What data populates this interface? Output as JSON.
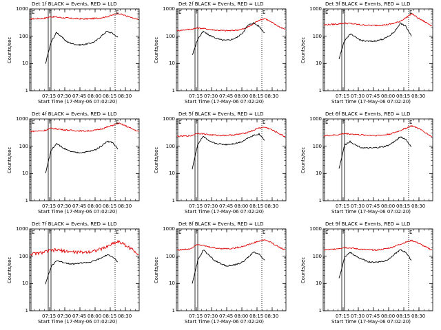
{
  "figure": {
    "x_tick_labels": [
      "07:15",
      "07:30",
      "07:45",
      "08:00",
      "08:15",
      "08:30"
    ],
    "y_tick_labels": [
      "1",
      "10",
      "100",
      "1000"
    ],
    "ylabel": "Counts/sec",
    "xlabel": "Start Time (17-May-06 07:02:20)",
    "marker_labels": [
      "E",
      "F",
      "E"
    ]
  },
  "chart_data": [
    {
      "type": "line",
      "title": "Det 1f BLACK = Events, RED = LLD",
      "ylim": [
        1,
        1000
      ],
      "yscale": "log",
      "series": [
        {
          "name": "RED",
          "color": "#e00000",
          "values": [
            430,
            440,
            450,
            520,
            500,
            470,
            450,
            440,
            430,
            440,
            460,
            500,
            580,
            690,
            580,
            470,
            400
          ]
        },
        {
          "name": "BLACK",
          "color": "#000000",
          "values": [
            10,
            60,
            140,
            90,
            60,
            52,
            48,
            50,
            55,
            65,
            100,
            150,
            130,
            90
          ]
        }
      ]
    },
    {
      "type": "line",
      "title": "Det 2f BLACK = Events, RED = LLD",
      "ylim": [
        1,
        1000
      ],
      "yscale": "log",
      "series": [
        {
          "name": "RED",
          "color": "#e00000",
          "values": [
            160,
            170,
            180,
            200,
            190,
            175,
            165,
            160,
            160,
            170,
            190,
            250,
            380,
            450,
            320,
            230,
            180
          ]
        },
        {
          "name": "BLACK",
          "color": "#000000",
          "values": [
            20,
            80,
            150,
            110,
            90,
            75,
            70,
            75,
            90,
            130,
            250,
            310,
            230,
            130
          ]
        }
      ]
    },
    {
      "type": "line",
      "title": "Det 3f BLACK = Events, RED = LLD",
      "ylim": [
        1,
        1000
      ],
      "yscale": "log",
      "series": [
        {
          "name": "RED",
          "color": "#e00000",
          "values": [
            260,
            270,
            280,
            300,
            290,
            270,
            255,
            250,
            250,
            260,
            280,
            330,
            450,
            680,
            450,
            330,
            240
          ]
        },
        {
          "name": "BLACK",
          "color": "#000000",
          "values": [
            15,
            70,
            120,
            90,
            70,
            65,
            65,
            70,
            80,
            100,
            150,
            300,
            230,
            100
          ]
        }
      ]
    },
    {
      "type": "line",
      "title": "Det 4f BLACK = Events, RED = LLD",
      "ylim": [
        1,
        1000
      ],
      "yscale": "log",
      "series": [
        {
          "name": "RED",
          "color": "#e00000",
          "values": [
            350,
            360,
            370,
            450,
            430,
            400,
            380,
            370,
            360,
            370,
            400,
            470,
            560,
            700,
            570,
            440,
            340
          ]
        },
        {
          "name": "BLACK",
          "color": "#000000",
          "values": [
            10,
            70,
            130,
            90,
            70,
            60,
            58,
            60,
            65,
            75,
            100,
            150,
            140,
            80
          ]
        }
      ]
    },
    {
      "type": "line",
      "title": "Det 5f BLACK = Events, RED = LLD",
      "ylim": [
        1,
        1000
      ],
      "yscale": "log",
      "series": [
        {
          "name": "RED",
          "color": "#e00000",
          "values": [
            230,
            235,
            240,
            300,
            280,
            260,
            250,
            250,
            255,
            270,
            300,
            360,
            460,
            500,
            400,
            300,
            220
          ]
        },
        {
          "name": "BLACK",
          "color": "#000000",
          "values": [
            15,
            120,
            230,
            150,
            130,
            120,
            115,
            120,
            130,
            150,
            200,
            250,
            280,
            170
          ]
        }
      ]
    },
    {
      "type": "line",
      "title": "Det 6f BLACK = Events, RED = LLD",
      "ylim": [
        1,
        1000
      ],
      "yscale": "log",
      "series": [
        {
          "name": "RED",
          "color": "#e00000",
          "values": [
            240,
            250,
            260,
            290,
            280,
            265,
            255,
            250,
            250,
            260,
            290,
            350,
            450,
            560,
            450,
            320,
            220
          ]
        },
        {
          "name": "BLACK",
          "color": "#000000",
          "values": [
            15,
            110,
            150,
            110,
            90,
            85,
            85,
            90,
            95,
            110,
            150,
            220,
            180,
            90
          ]
        }
      ]
    },
    {
      "type": "line",
      "title": "Det 7f BLACK = Events, RED = LLD",
      "ylim": [
        1,
        1000
      ],
      "yscale": "log",
      "series": [
        {
          "name": "RED",
          "color": "#e00000",
          "values": [
            120,
            125,
            140,
            160,
            170,
            155,
            145,
            140,
            140,
            150,
            170,
            200,
            280,
            350,
            260,
            180,
            120
          ]
        },
        {
          "name": "BLACK",
          "color": "#000000",
          "values": [
            10,
            40,
            70,
            60,
            55,
            52,
            55,
            58,
            60,
            70,
            85,
            110,
            100,
            60
          ]
        }
      ]
    },
    {
      "type": "line",
      "title": "Det 8f BLACK = Events, RED = LLD",
      "ylim": [
        1,
        1000
      ],
      "yscale": "log",
      "series": [
        {
          "name": "RED",
          "color": "#e00000",
          "values": [
            170,
            175,
            190,
            280,
            240,
            210,
            195,
            190,
            190,
            210,
            240,
            290,
            350,
            400,
            310,
            220,
            170
          ]
        },
        {
          "name": "BLACK",
          "color": "#000000",
          "values": [
            10,
            70,
            170,
            110,
            70,
            55,
            45,
            45,
            50,
            60,
            90,
            140,
            120,
            70
          ]
        }
      ]
    },
    {
      "type": "line",
      "title": "Det 9f BLACK = Events, RED = LLD",
      "ylim": [
        1,
        1000
      ],
      "yscale": "log",
      "series": [
        {
          "name": "RED",
          "color": "#e00000",
          "values": [
            170,
            175,
            190,
            210,
            200,
            185,
            175,
            170,
            170,
            185,
            210,
            260,
            320,
            380,
            300,
            220,
            170
          ]
        },
        {
          "name": "BLACK",
          "color": "#000000",
          "values": [
            15,
            90,
            140,
            100,
            80,
            65,
            60,
            62,
            65,
            80,
            120,
            170,
            140,
            70
          ]
        }
      ]
    }
  ]
}
